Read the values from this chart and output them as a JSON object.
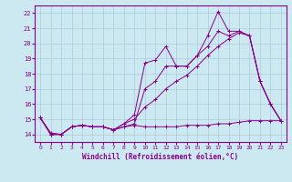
{
  "background_color": "#cce8f0",
  "grid_color": "#aaccdd",
  "line_color": "#880088",
  "xlabel": "Windchill (Refroidissement éolien,°C)",
  "xlim": [
    -0.5,
    23.5
  ],
  "ylim": [
    13.5,
    22.5
  ],
  "yticks": [
    14,
    15,
    16,
    17,
    18,
    19,
    20,
    21,
    22
  ],
  "xticks": [
    0,
    1,
    2,
    3,
    4,
    5,
    6,
    7,
    8,
    9,
    10,
    11,
    12,
    13,
    14,
    15,
    16,
    17,
    18,
    19,
    20,
    21,
    22,
    23
  ],
  "series": [
    {
      "x": [
        0,
        1,
        2,
        3,
        4,
        5,
        6,
        7,
        8,
        9,
        10,
        11,
        12,
        13,
        14,
        15,
        16,
        17,
        18,
        19,
        20,
        21,
        22,
        23
      ],
      "y": [
        15.1,
        14.0,
        14.0,
        14.5,
        14.6,
        14.5,
        14.5,
        14.3,
        14.7,
        15.3,
        18.7,
        18.9,
        19.8,
        18.5,
        18.5,
        19.2,
        20.5,
        22.1,
        20.8,
        20.8,
        20.5,
        17.5,
        16.0,
        14.9
      ]
    },
    {
      "x": [
        0,
        1,
        2,
        3,
        4,
        5,
        6,
        7,
        8,
        9,
        10,
        11,
        12,
        13,
        14,
        15,
        16,
        17,
        18,
        19,
        20,
        21,
        22,
        23
      ],
      "y": [
        15.1,
        14.0,
        14.0,
        14.5,
        14.6,
        14.5,
        14.5,
        14.3,
        14.5,
        14.7,
        17.0,
        17.5,
        18.5,
        18.5,
        18.5,
        19.2,
        19.8,
        20.8,
        20.5,
        20.8,
        20.5,
        17.5,
        16.0,
        14.9
      ]
    },
    {
      "x": [
        0,
        1,
        2,
        3,
        4,
        5,
        6,
        7,
        8,
        9,
        10,
        11,
        12,
        13,
        14,
        15,
        16,
        17,
        18,
        19,
        20,
        21,
        22,
        23
      ],
      "y": [
        15.1,
        14.1,
        14.0,
        14.5,
        14.6,
        14.5,
        14.5,
        14.3,
        14.5,
        14.6,
        14.5,
        14.5,
        14.5,
        14.5,
        14.6,
        14.6,
        14.6,
        14.7,
        14.7,
        14.8,
        14.9,
        14.9,
        14.9,
        14.9
      ]
    },
    {
      "x": [
        0,
        1,
        2,
        3,
        4,
        5,
        6,
        7,
        8,
        9,
        10,
        11,
        12,
        13,
        14,
        15,
        16,
        17,
        18,
        19,
        20,
        21,
        22,
        23
      ],
      "y": [
        15.1,
        14.0,
        14.0,
        14.5,
        14.6,
        14.5,
        14.5,
        14.3,
        14.7,
        15.0,
        15.8,
        16.3,
        17.0,
        17.5,
        17.9,
        18.5,
        19.2,
        19.8,
        20.3,
        20.7,
        20.5,
        17.5,
        16.0,
        14.9
      ]
    }
  ]
}
